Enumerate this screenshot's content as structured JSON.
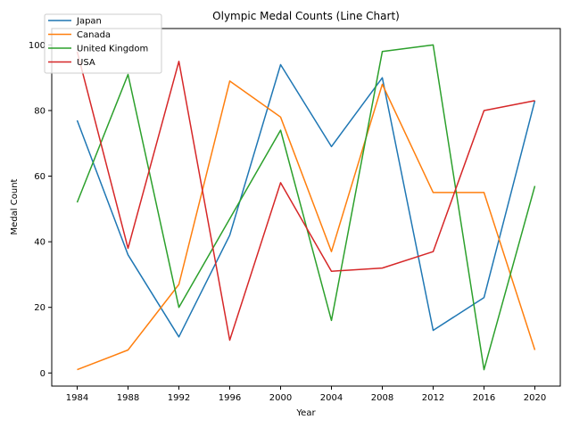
{
  "chart_data": {
    "type": "line",
    "title": "Olympic Medal Counts (Line Chart)",
    "xlabel": "Year",
    "ylabel": "Medal Count",
    "x": [
      1984,
      1988,
      1992,
      1996,
      2000,
      2004,
      2008,
      2012,
      2016,
      2020
    ],
    "xlim": [
      1982,
      2022
    ],
    "ylim": [
      -4,
      105
    ],
    "xticks": [
      1984,
      1988,
      1992,
      1996,
      2000,
      2004,
      2008,
      2012,
      2016,
      2020
    ],
    "yticks": [
      0,
      20,
      40,
      60,
      80,
      100
    ],
    "grid": false,
    "legend_position": "top-left",
    "series": [
      {
        "name": "Japan",
        "color": "#1f77b4",
        "values": [
          77,
          36,
          11,
          42,
          94,
          69,
          90,
          13,
          23,
          83
        ]
      },
      {
        "name": "Canada",
        "color": "#ff7f0e",
        "values": [
          1,
          7,
          27,
          89,
          78,
          37,
          88,
          55,
          55,
          7
        ]
      },
      {
        "name": "United Kingdom",
        "color": "#2ca02c",
        "values": [
          52,
          91,
          20,
          47,
          74,
          16,
          98,
          100,
          1,
          57
        ]
      },
      {
        "name": "USA",
        "color": "#d62728",
        "values": [
          98,
          38,
          95,
          10,
          58,
          31,
          32,
          37,
          80,
          83
        ]
      }
    ]
  }
}
